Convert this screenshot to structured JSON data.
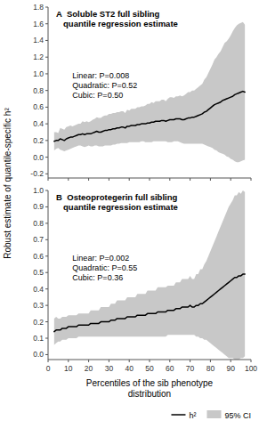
{
  "chart_data": [
    {
      "type": "line",
      "title": "A  Soluble ST2 full sibling\n   quantile regression estimate",
      "annotations": "Linear: P=0.008\nQuadratic: P=0.52\nCubic: P=0.50",
      "ylabel": "Robust estimate of quantile-specific h²",
      "x": [
        3,
        4,
        5,
        6,
        7,
        8,
        9,
        10,
        11,
        12,
        13,
        14,
        15,
        16,
        17,
        18,
        19,
        20,
        21,
        22,
        23,
        24,
        25,
        26,
        27,
        28,
        29,
        30,
        31,
        32,
        33,
        34,
        35,
        36,
        37,
        38,
        39,
        40,
        41,
        42,
        43,
        44,
        45,
        46,
        47,
        48,
        49,
        50,
        51,
        52,
        53,
        54,
        55,
        56,
        57,
        58,
        59,
        60,
        61,
        62,
        63,
        64,
        65,
        66,
        67,
        68,
        69,
        70,
        71,
        72,
        73,
        74,
        75,
        76,
        77,
        78,
        79,
        80,
        81,
        82,
        83,
        84,
        85,
        86,
        87,
        88,
        89,
        90,
        91,
        92,
        93,
        94,
        95,
        96,
        97
      ],
      "series": [
        {
          "color": "#000000",
          "values": [
            0.19,
            0.2,
            0.2,
            0.22,
            0.21,
            0.2,
            0.22,
            0.23,
            0.24,
            0.24,
            0.25,
            0.26,
            0.27,
            0.27,
            0.28,
            0.27,
            0.28,
            0.28,
            0.28,
            0.29,
            0.3,
            0.31,
            0.3,
            0.3,
            0.31,
            0.32,
            0.32,
            0.33,
            0.33,
            0.34,
            0.34,
            0.35,
            0.35,
            0.36,
            0.36,
            0.35,
            0.37,
            0.37,
            0.38,
            0.38,
            0.38,
            0.39,
            0.39,
            0.4,
            0.4,
            0.4,
            0.41,
            0.41,
            0.42,
            0.42,
            0.43,
            0.43,
            0.43,
            0.44,
            0.44,
            0.43,
            0.44,
            0.45,
            0.45,
            0.45,
            0.46,
            0.46,
            0.46,
            0.45,
            0.45,
            0.46,
            0.47,
            0.47,
            0.48,
            0.48,
            0.49,
            0.5,
            0.51,
            0.52,
            0.54,
            0.55,
            0.57,
            0.59,
            0.61,
            0.63,
            0.64,
            0.65,
            0.66,
            0.68,
            0.69,
            0.7,
            0.71,
            0.72,
            0.73,
            0.75,
            0.76,
            0.77,
            0.78,
            0.79,
            0.78
          ]
        },
        {
          "type": "band",
          "color": "#c8c8c8",
          "lower": [
            0.08,
            0.1,
            0.11,
            0.09,
            0.08,
            0.07,
            0.08,
            0.09,
            0.1,
            0.11,
            0.12,
            0.13,
            0.14,
            0.14,
            0.13,
            0.12,
            0.13,
            0.14,
            0.13,
            0.13,
            0.14,
            0.14,
            0.13,
            0.13,
            0.13,
            0.14,
            0.14,
            0.14,
            0.14,
            0.15,
            0.15,
            0.16,
            0.16,
            0.17,
            0.17,
            0.17,
            0.17,
            0.18,
            0.18,
            0.18,
            0.18,
            0.18,
            0.18,
            0.19,
            0.19,
            0.18,
            0.18,
            0.18,
            0.18,
            0.19,
            0.19,
            0.19,
            0.19,
            0.19,
            0.19,
            0.19,
            0.18,
            0.18,
            0.18,
            0.19,
            0.19,
            0.19,
            0.18,
            0.17,
            0.16,
            0.16,
            0.16,
            0.16,
            0.16,
            0.16,
            0.16,
            0.16,
            0.16,
            0.16,
            0.15,
            0.14,
            0.13,
            0.12,
            0.11,
            0.09,
            0.08,
            0.06,
            0.05,
            0.04,
            0.03,
            0.01,
            0.0,
            -0.02,
            -0.03,
            -0.05,
            -0.06,
            -0.06,
            -0.05,
            -0.04,
            -0.03
          ],
          "upper": [
            0.3,
            0.3,
            0.29,
            0.35,
            0.34,
            0.33,
            0.36,
            0.37,
            0.38,
            0.37,
            0.38,
            0.39,
            0.4,
            0.4,
            0.43,
            0.42,
            0.43,
            0.42,
            0.43,
            0.45,
            0.46,
            0.48,
            0.47,
            0.47,
            0.49,
            0.5,
            0.5,
            0.52,
            0.52,
            0.53,
            0.53,
            0.54,
            0.54,
            0.55,
            0.55,
            0.53,
            0.57,
            0.56,
            0.58,
            0.58,
            0.58,
            0.6,
            0.6,
            0.61,
            0.61,
            0.62,
            0.64,
            0.64,
            0.66,
            0.65,
            0.67,
            0.67,
            0.67,
            0.69,
            0.69,
            0.67,
            0.7,
            0.72,
            0.72,
            0.71,
            0.73,
            0.73,
            0.74,
            0.73,
            0.74,
            0.76,
            0.78,
            0.78,
            0.8,
            0.8,
            0.82,
            0.84,
            0.86,
            0.88,
            0.93,
            0.96,
            1.01,
            1.06,
            1.11,
            1.17,
            1.2,
            1.24,
            1.27,
            1.32,
            1.37,
            1.39,
            1.42,
            1.46,
            1.51,
            1.55,
            1.58,
            1.6,
            1.61,
            1.62,
            1.59
          ]
        }
      ],
      "xlim": [
        0,
        100
      ],
      "xticks": [
        0,
        10,
        20,
        30,
        40,
        50,
        60,
        70,
        80,
        90,
        100
      ],
      "ylim": [
        -0.25,
        1.8
      ],
      "yticks": [
        -0.2,
        {
          "value": 0,
          "label": "0.0"
        },
        0.2,
        0.4,
        0.6,
        0.8,
        {
          "value": 1,
          "label": "1.0"
        },
        1.2,
        1.4,
        1.6,
        1.8
      ],
      "grid": false,
      "tick_labels": "y"
    },
    {
      "type": "line",
      "title": "B  Osteoprotegerin full sibling\n   quantile regression estimate",
      "annotations": "Linear: P=0.002\nQuadratic: P=0.55\nCubic: P=0.36",
      "xlabel": "Percentiles of the sib phenotype\ndistribution",
      "x": [
        3,
        4,
        5,
        6,
        7,
        8,
        9,
        10,
        11,
        12,
        13,
        14,
        15,
        16,
        17,
        18,
        19,
        20,
        21,
        22,
        23,
        24,
        25,
        26,
        27,
        28,
        29,
        30,
        31,
        32,
        33,
        34,
        35,
        36,
        37,
        38,
        39,
        40,
        41,
        42,
        43,
        44,
        45,
        46,
        47,
        48,
        49,
        50,
        51,
        52,
        53,
        54,
        55,
        56,
        57,
        58,
        59,
        60,
        61,
        62,
        63,
        64,
        65,
        66,
        67,
        68,
        69,
        70,
        71,
        72,
        73,
        74,
        75,
        76,
        77,
        78,
        79,
        80,
        81,
        82,
        83,
        84,
        85,
        86,
        87,
        88,
        89,
        90,
        91,
        92,
        93,
        94,
        95,
        96,
        97
      ],
      "series": [
        {
          "name": "h²",
          "color": "#000000",
          "values": [
            0.14,
            0.15,
            0.15,
            0.15,
            0.16,
            0.16,
            0.16,
            0.17,
            0.17,
            0.17,
            0.17,
            0.17,
            0.18,
            0.18,
            0.18,
            0.18,
            0.18,
            0.18,
            0.19,
            0.19,
            0.19,
            0.19,
            0.19,
            0.2,
            0.2,
            0.2,
            0.2,
            0.2,
            0.21,
            0.21,
            0.21,
            0.22,
            0.22,
            0.22,
            0.22,
            0.22,
            0.23,
            0.23,
            0.23,
            0.23,
            0.23,
            0.24,
            0.24,
            0.24,
            0.24,
            0.24,
            0.25,
            0.25,
            0.25,
            0.25,
            0.25,
            0.26,
            0.26,
            0.26,
            0.26,
            0.26,
            0.27,
            0.27,
            0.27,
            0.27,
            0.28,
            0.28,
            0.28,
            0.29,
            0.29,
            0.29,
            0.29,
            0.3,
            0.29,
            0.29,
            0.3,
            0.3,
            0.31,
            0.31,
            0.32,
            0.33,
            0.34,
            0.35,
            0.36,
            0.37,
            0.38,
            0.39,
            0.4,
            0.41,
            0.42,
            0.43,
            0.44,
            0.45,
            0.46,
            0.47,
            0.47,
            0.48,
            0.48,
            0.49,
            0.49
          ]
        },
        {
          "name": "95% CI",
          "type": "band",
          "color": "#c8c8c8",
          "lower": [
            0.06,
            0.07,
            0.08,
            0.08,
            0.09,
            0.09,
            0.09,
            0.1,
            0.1,
            0.1,
            0.1,
            0.1,
            0.11,
            0.11,
            0.11,
            0.11,
            0.11,
            0.11,
            0.11,
            0.11,
            0.11,
            0.11,
            0.11,
            0.11,
            0.11,
            0.11,
            0.11,
            0.11,
            0.11,
            0.11,
            0.11,
            0.11,
            0.11,
            0.11,
            0.11,
            0.11,
            0.11,
            0.11,
            0.11,
            0.11,
            0.11,
            0.11,
            0.11,
            0.11,
            0.11,
            0.11,
            0.11,
            0.11,
            0.11,
            0.11,
            0.11,
            0.11,
            0.11,
            0.11,
            0.11,
            0.11,
            0.12,
            0.12,
            0.12,
            0.12,
            0.12,
            0.12,
            0.12,
            0.12,
            0.12,
            0.12,
            0.12,
            0.12,
            0.12,
            0.12,
            0.11,
            0.11,
            0.1,
            0.1,
            0.09,
            0.09,
            0.08,
            0.07,
            0.06,
            0.05,
            0.04,
            0.03,
            0.02,
            0.01,
            0.0,
            -0.01,
            -0.02,
            -0.02,
            -0.02,
            -0.03,
            -0.03,
            -0.03,
            -0.02,
            -0.02,
            -0.01
          ],
          "upper": [
            0.22,
            0.23,
            0.22,
            0.22,
            0.23,
            0.23,
            0.23,
            0.24,
            0.24,
            0.24,
            0.24,
            0.24,
            0.25,
            0.25,
            0.25,
            0.25,
            0.25,
            0.25,
            0.27,
            0.27,
            0.27,
            0.27,
            0.27,
            0.29,
            0.29,
            0.29,
            0.29,
            0.29,
            0.31,
            0.31,
            0.31,
            0.33,
            0.33,
            0.33,
            0.33,
            0.33,
            0.35,
            0.35,
            0.35,
            0.35,
            0.35,
            0.37,
            0.37,
            0.37,
            0.37,
            0.37,
            0.39,
            0.39,
            0.39,
            0.39,
            0.39,
            0.41,
            0.41,
            0.41,
            0.41,
            0.41,
            0.42,
            0.42,
            0.42,
            0.42,
            0.44,
            0.44,
            0.44,
            0.46,
            0.46,
            0.46,
            0.46,
            0.48,
            0.46,
            0.46,
            0.49,
            0.49,
            0.52,
            0.52,
            0.55,
            0.57,
            0.6,
            0.63,
            0.66,
            0.69,
            0.72,
            0.75,
            0.78,
            0.81,
            0.84,
            0.87,
            0.9,
            0.92,
            0.94,
            0.97,
            0.97,
            0.99,
            0.98,
            1.0,
            0.99
          ]
        }
      ],
      "xlim": [
        0,
        100
      ],
      "xticks": [
        0,
        10,
        20,
        30,
        40,
        50,
        60,
        70,
        80,
        90,
        100
      ],
      "ylim": [
        -0.03,
        1.0
      ],
      "yticks": [
        {
          "value": 0,
          "label": "0.0"
        },
        0.1,
        0.2,
        0.3,
        0.4,
        0.5,
        0.6,
        0.7,
        0.8,
        0.9,
        {
          "value": 1,
          "label": "1.0"
        }
      ],
      "grid": false,
      "legend": "lower right"
    }
  ]
}
